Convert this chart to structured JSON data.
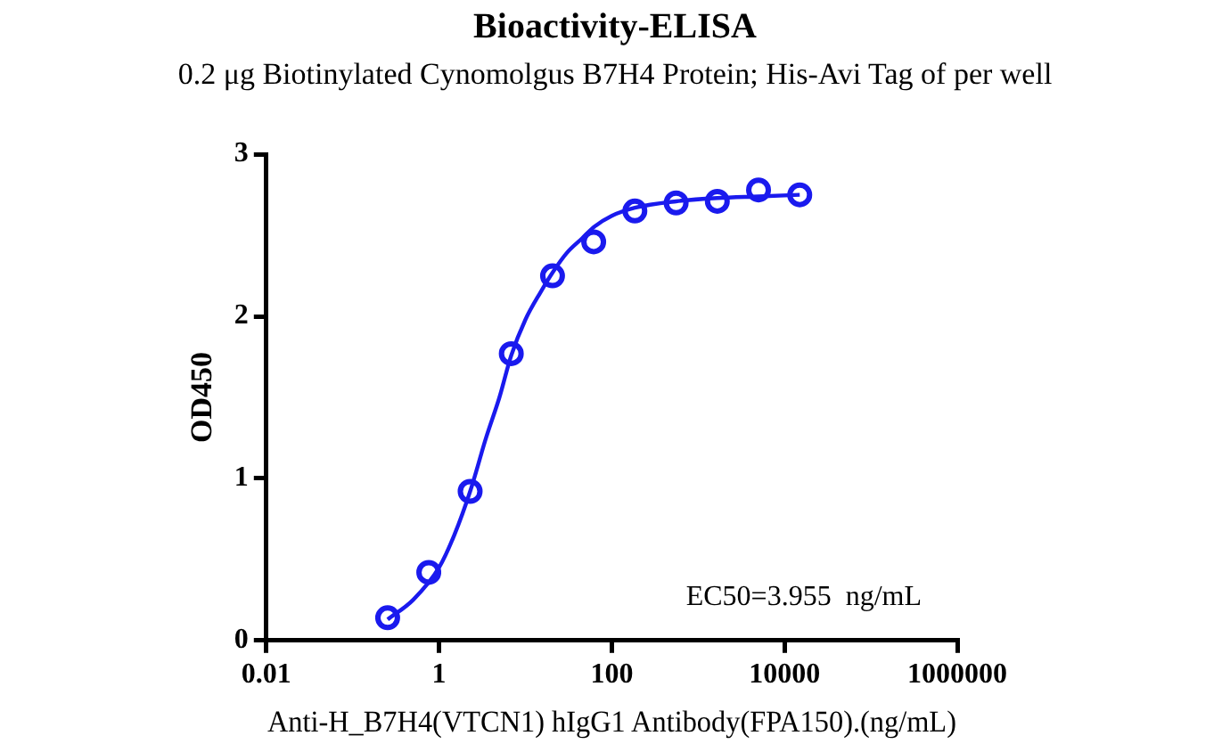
{
  "chart_data": {
    "type": "scatter",
    "title": "Bioactivity-ELISA",
    "subtitle": "0.2 μg Biotinylated Cynomolgus B7H4 Protein; His-Avi Tag of per well",
    "xlabel": "Anti-H_B7H4(VTCN1) hIgG1 Antibody(FPA150).(ng/mL)",
    "ylabel": "OD450",
    "log": "x",
    "grid": false,
    "legend": false,
    "xlim": [
      0.01,
      1000000
    ],
    "xticks": [
      0.01,
      1,
      100,
      10000,
      1000000
    ],
    "ylim": [
      0,
      3
    ],
    "yticks": [
      0,
      1,
      2,
      3
    ],
    "annotations": [
      "EC50=3.955  ng/mL"
    ],
    "series": [
      {
        "color": "#1a1aee",
        "marker": "circle",
        "x": [
          0.254,
          0.76,
          2.29,
          6.86,
          20.6,
          61.7,
          185,
          556,
          1667,
          5000,
          15000
        ],
        "values": [
          0.14,
          0.42,
          0.92,
          1.77,
          2.25,
          2.46,
          2.65,
          2.7,
          2.71,
          2.78,
          2.75
        ]
      },
      {
        "type": "line",
        "color": "#1a1aee",
        "marker": "none",
        "line_style": "solid",
        "x": [
          0.254,
          0.5,
          1,
          1.5,
          2.29,
          3.5,
          5,
          6.86,
          10,
          15,
          20.6,
          30,
          45,
          61.7,
          100,
          185,
          556,
          1667,
          5000,
          15000
        ],
        "values": [
          0.13,
          0.25,
          0.45,
          0.65,
          0.92,
          1.25,
          1.5,
          1.76,
          1.98,
          2.15,
          2.27,
          2.39,
          2.48,
          2.55,
          2.62,
          2.67,
          2.71,
          2.73,
          2.74,
          2.75
        ]
      }
    ]
  }
}
